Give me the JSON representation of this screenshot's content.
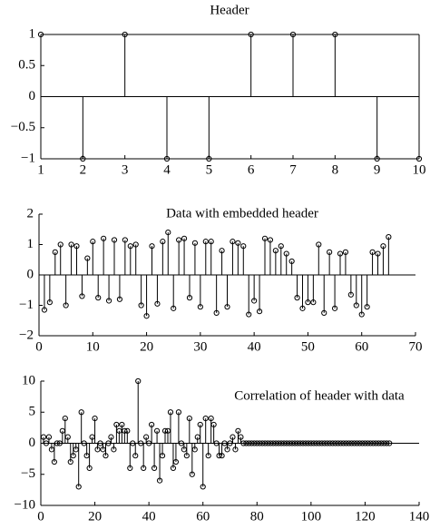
{
  "chart_data": [
    {
      "type": "stem",
      "title": "Header",
      "color": "#000000",
      "x": [
        1,
        2,
        3,
        4,
        5,
        6,
        7,
        8,
        9,
        10
      ],
      "values": [
        1,
        -1,
        1,
        -1,
        -1,
        1,
        1,
        1,
        -1,
        -1
      ],
      "xlim": [
        1,
        10
      ],
      "ylim": [
        -1,
        1
      ],
      "xticks": [
        1,
        2,
        3,
        4,
        5,
        6,
        7,
        8,
        9,
        10
      ],
      "yticks": [
        {
          "value": -1,
          "label": "−1"
        },
        {
          "value": -0.5,
          "label": "−0.5"
        },
        0,
        0.5,
        1
      ]
    },
    {
      "type": "stem",
      "title": "Data with embedded header",
      "color": "#000000",
      "x": [
        1,
        2,
        3,
        4,
        5,
        6,
        7,
        8,
        9,
        10,
        11,
        12,
        13,
        14,
        15,
        16,
        17,
        18,
        19,
        20,
        21,
        22,
        23,
        24,
        25,
        26,
        27,
        28,
        29,
        30,
        31,
        32,
        33,
        34,
        35,
        36,
        37,
        38,
        39,
        40,
        41,
        42,
        43,
        44,
        45,
        46,
        47,
        48,
        49,
        50,
        51,
        52,
        53,
        54,
        55,
        56,
        57,
        58,
        59,
        60,
        61,
        62,
        63,
        64,
        65
      ],
      "values": [
        -1.15,
        -0.9,
        0.75,
        1.0,
        -1.0,
        1.0,
        0.95,
        -0.7,
        0.55,
        1.1,
        -0.75,
        1.2,
        -0.85,
        1.15,
        -0.8,
        1.15,
        0.95,
        1.0,
        -1.0,
        -1.35,
        0.95,
        -0.95,
        1.1,
        1.4,
        -1.1,
        1.15,
        1.2,
        -0.75,
        1.05,
        -1.05,
        1.1,
        1.1,
        -1.25,
        0.8,
        -1.05,
        1.1,
        1.05,
        0.95,
        -1.3,
        -0.85,
        -1.2,
        1.2,
        1.15,
        0.8,
        0.95,
        0.7,
        0.45,
        -0.75,
        -1.1,
        -0.9,
        -0.9,
        1.0,
        -1.25,
        0.75,
        -1.1,
        0.7,
        0.75,
        -0.65,
        -1.0,
        -1.3,
        -1.05,
        0.75,
        0.7,
        0.95,
        1.25
      ],
      "xlim": [
        0,
        70
      ],
      "ylim": [
        -2,
        2
      ],
      "xticks": [
        0,
        10,
        20,
        30,
        40,
        50,
        60,
        70
      ],
      "yticks": [
        {
          "value": -2,
          "label": "−2"
        },
        {
          "value": -1,
          "label": "−1"
        },
        0,
        1,
        2
      ]
    },
    {
      "type": "stem",
      "title": "Correlation of header with data",
      "color": "#000000",
      "x": [
        1,
        2,
        3,
        4,
        5,
        6,
        7,
        8,
        9,
        10,
        11,
        12,
        13,
        14,
        15,
        16,
        17,
        18,
        19,
        20,
        21,
        22,
        23,
        24,
        25,
        26,
        27,
        28,
        29,
        30,
        31,
        32,
        33,
        34,
        35,
        36,
        37,
        38,
        39,
        40,
        41,
        42,
        43,
        44,
        45,
        46,
        47,
        48,
        49,
        50,
        51,
        52,
        53,
        54,
        55,
        56,
        57,
        58,
        59,
        60,
        61,
        62,
        63,
        64,
        65,
        66,
        67,
        68,
        69,
        70,
        71,
        72,
        73,
        74,
        75,
        76,
        77,
        78,
        79,
        80,
        81,
        82,
        83,
        84,
        85,
        86,
        87,
        88,
        89,
        90,
        91,
        92,
        93,
        94,
        95,
        96,
        97,
        98,
        99,
        100,
        101,
        102,
        103,
        104,
        105,
        106,
        107,
        108,
        109,
        110,
        111,
        112,
        113,
        114,
        115,
        116,
        117,
        118,
        119,
        120,
        121,
        122,
        123,
        124,
        125,
        126,
        127,
        128,
        129
      ],
      "values": [
        1,
        0,
        1,
        -1,
        -3,
        0,
        0,
        2,
        4,
        1,
        -3,
        -2,
        -1,
        -7,
        5,
        0,
        -2,
        -4,
        1,
        4,
        -1,
        0,
        -1,
        -2,
        0,
        1,
        -1,
        3,
        2,
        3,
        2,
        2,
        -4,
        0,
        -2,
        10,
        0,
        -4,
        1,
        0,
        3,
        -4,
        2,
        -6,
        -2,
        2,
        2,
        5,
        -4,
        -3,
        5,
        0,
        -1,
        -2,
        4,
        -5,
        -1,
        1,
        3,
        -7,
        4,
        -2,
        4,
        3,
        0,
        -2,
        -2,
        0,
        -1,
        0,
        1,
        -1,
        2,
        1,
        0,
        0,
        0,
        0,
        0,
        0,
        0,
        0,
        0,
        0,
        0,
        0,
        0,
        0,
        0,
        0,
        0,
        0,
        0,
        0,
        0,
        0,
        0,
        0,
        0,
        0,
        0,
        0,
        0,
        0,
        0,
        0,
        0,
        0,
        0,
        0,
        0,
        0,
        0,
        0,
        0,
        0,
        0,
        0,
        0,
        0,
        0,
        0,
        0,
        0,
        0,
        0,
        0,
        0,
        0
      ],
      "xlim": [
        0,
        140
      ],
      "ylim": [
        -10,
        10
      ],
      "xticks": [
        0,
        20,
        40,
        60,
        80,
        100,
        120,
        140
      ],
      "yticks": [
        {
          "value": -10,
          "label": "−10"
        },
        {
          "value": -5,
          "label": "−5"
        },
        0,
        5,
        10
      ]
    }
  ]
}
